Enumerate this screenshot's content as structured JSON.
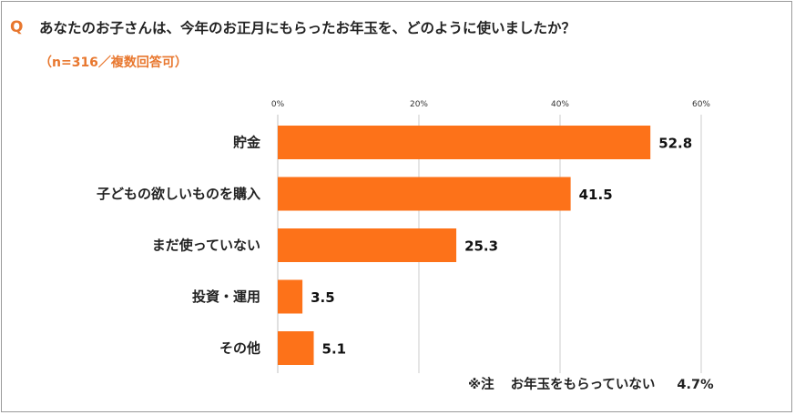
{
  "question": {
    "mark": "Q",
    "text": "あなたのお子さんは、今年のお正月にもらったお年玉を、どのように使いましたか？",
    "sample_note": "（n=316／複数回答可）"
  },
  "footnote": {
    "prefix": "※注",
    "label": "お年玉をもらっていない",
    "value": "4.7%"
  },
  "colors": {
    "bar": "#fd7219",
    "accent": "#e8772e",
    "grid": "#bfbfbf"
  },
  "chart_data": {
    "type": "bar",
    "orientation": "horizontal",
    "title": "",
    "xlabel": "",
    "ylabel": "",
    "xlim": [
      0,
      60
    ],
    "x_ticks": [
      0,
      20,
      40,
      60
    ],
    "x_tick_labels": [
      "0%",
      "20%",
      "40%",
      "60%"
    ],
    "grid": true,
    "categories": [
      "貯金",
      "子どもの欲しいものを購入",
      "まだ使っていない",
      "投資・運用",
      "その他"
    ],
    "values": [
      52.8,
      41.5,
      25.3,
      3.5,
      5.1
    ],
    "value_labels": [
      "52.8",
      "41.5",
      "25.3",
      "3.5",
      "5.1"
    ]
  }
}
